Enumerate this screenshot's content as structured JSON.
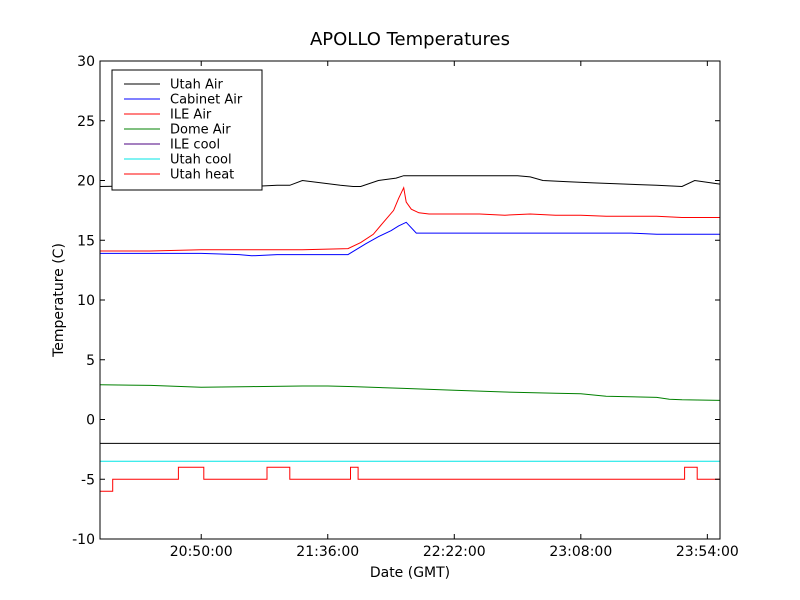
{
  "chart_data": {
    "type": "line",
    "title": "APOLLO Temperatures",
    "xlabel": "Date (GMT)",
    "ylabel": "Temperature (C)",
    "xlim": [
      0,
      24.5
    ],
    "ylim": [
      -10,
      30
    ],
    "grid": false,
    "legend_position": "top-left",
    "y_ticks": [
      30,
      25,
      20,
      15,
      10,
      5,
      0,
      -5,
      -10
    ],
    "y_tick_labels": [
      "30",
      "25",
      "20",
      "15",
      "10",
      "5",
      "0",
      "-5",
      "-10"
    ],
    "x_ticks": [
      4.0,
      9.0,
      14.0,
      19.0,
      24.0
    ],
    "x_tick_labels": [
      "20:50:00",
      "21:36:00",
      "22:22:00",
      "23:08:00",
      "23:54:00"
    ],
    "series": [
      {
        "name": "Utah Air",
        "color": "#000000",
        "x": [
          0,
          3,
          6,
          7,
          7.5,
          8,
          9.5,
          10,
          10.3,
          11,
          11.7,
          12,
          14,
          15.5,
          16.5,
          17,
          17.5,
          18.5,
          19.5,
          22,
          23,
          23.5,
          24.5
        ],
        "y": [
          19.5,
          19.6,
          19.5,
          19.6,
          19.6,
          20.0,
          19.6,
          19.5,
          19.5,
          20.0,
          20.2,
          20.4,
          20.4,
          20.4,
          20.4,
          20.3,
          20.0,
          19.9,
          19.8,
          19.6,
          19.5,
          20.0,
          19.7
        ]
      },
      {
        "name": "Cabinet Air",
        "color": "#0000ff",
        "x": [
          0,
          2,
          4,
          5.5,
          6,
          7,
          9.8,
          10.5,
          11,
          11.5,
          11.8,
          12.1,
          12.5,
          14,
          16,
          17,
          18,
          19,
          21,
          22,
          24.5
        ],
        "y": [
          13.9,
          13.9,
          13.9,
          13.8,
          13.7,
          13.8,
          13.8,
          14.7,
          15.3,
          15.8,
          16.2,
          16.5,
          15.6,
          15.6,
          15.6,
          15.6,
          15.6,
          15.6,
          15.6,
          15.5,
          15.5
        ]
      },
      {
        "name": "ILE Air",
        "color": "#ff0000",
        "x": [
          0,
          2,
          4,
          6,
          8,
          9.8,
          10.3,
          10.8,
          11.2,
          11.6,
          11.8,
          12,
          12.1,
          12.3,
          12.6,
          13,
          14,
          15,
          16,
          17,
          18,
          19,
          20,
          21,
          22,
          23,
          24.5
        ],
        "y": [
          14.1,
          14.1,
          14.2,
          14.2,
          14.2,
          14.3,
          14.8,
          15.5,
          16.5,
          17.5,
          18.5,
          19.4,
          18.2,
          17.6,
          17.3,
          17.2,
          17.2,
          17.2,
          17.1,
          17.2,
          17.1,
          17.1,
          17.0,
          17.0,
          17.0,
          16.9,
          16.9
        ]
      },
      {
        "name": "Dome Air",
        "color": "#008000",
        "x": [
          0,
          2,
          4,
          6,
          8,
          9,
          10,
          12,
          14,
          16,
          18,
          19,
          20,
          22,
          22.5,
          23,
          24.5
        ],
        "y": [
          2.9,
          2.85,
          2.7,
          2.75,
          2.8,
          2.8,
          2.75,
          2.6,
          2.45,
          2.3,
          2.2,
          2.15,
          1.95,
          1.85,
          1.7,
          1.65,
          1.6
        ]
      },
      {
        "name": "ILE cool",
        "color": "#4b0082",
        "x": [],
        "y": []
      },
      {
        "name": "Utah cool",
        "color": "#00e5e5",
        "x": [
          0,
          24.5
        ],
        "y": [
          -3.5,
          -3.5
        ]
      },
      {
        "name": "Utah heat",
        "color": "#ff0000",
        "x": [
          0,
          0.5,
          0.5,
          3.1,
          3.1,
          4.1,
          4.1,
          6.6,
          6.6,
          7.5,
          7.5,
          9.9,
          9.9,
          10.2,
          10.2,
          23.1,
          23.1,
          23.6,
          23.6,
          24.5
        ],
        "y": [
          -6,
          -6,
          -5,
          -5,
          -4,
          -4,
          -5,
          -5,
          -4,
          -4,
          -5,
          -5,
          -4,
          -4,
          -5,
          -5,
          -4,
          -4,
          -5,
          -5
        ]
      }
    ],
    "extra_lines": [
      {
        "description": "unlabeled horizontal reference",
        "color": "#000000",
        "x": [
          0,
          24.5
        ],
        "y": [
          -2,
          -2
        ]
      }
    ]
  }
}
